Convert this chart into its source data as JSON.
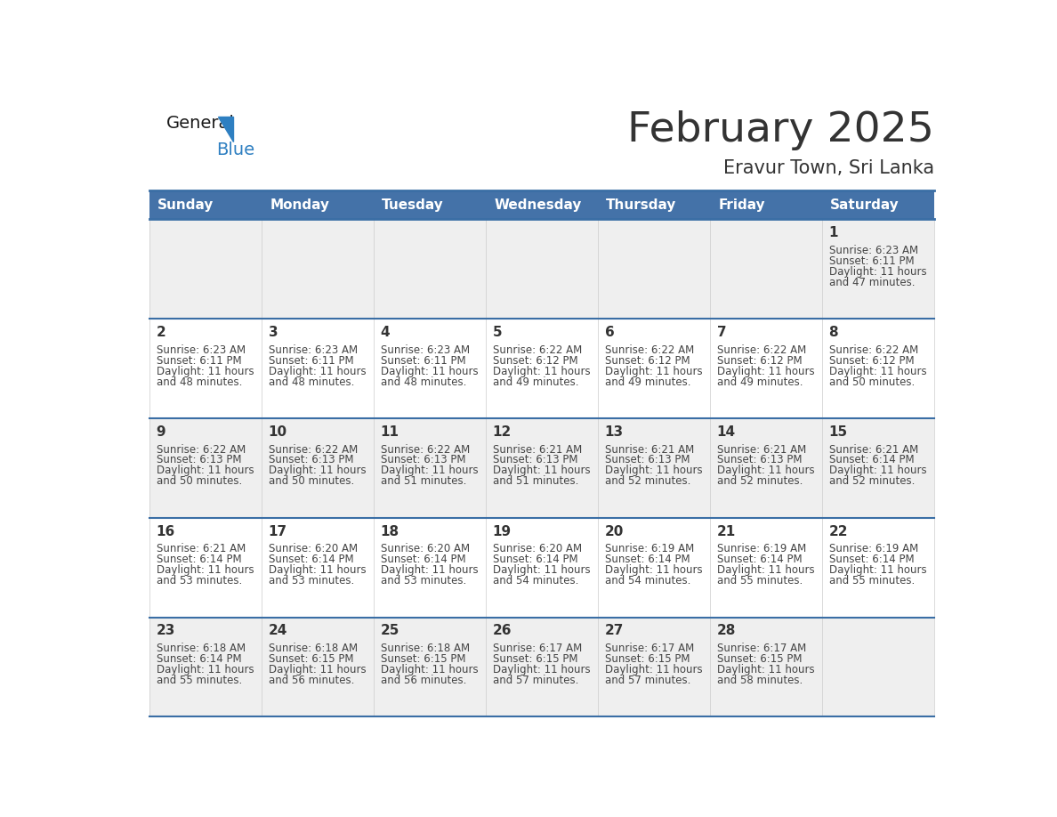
{
  "title": "February 2025",
  "subtitle": "Eravur Town, Sri Lanka",
  "header_bg_color": "#4472a8",
  "header_text_color": "#ffffff",
  "day_names": [
    "Sunday",
    "Monday",
    "Tuesday",
    "Wednesday",
    "Thursday",
    "Friday",
    "Saturday"
  ],
  "row_bg_even": "#efefef",
  "row_bg_odd": "#ffffff",
  "cell_border_color": "#cccccc",
  "date_text_color": "#333333",
  "info_text_color": "#444444",
  "logo_general_color": "#1a1a1a",
  "logo_blue_color": "#2e7fc1",
  "separator_color": "#3a6ea5",
  "days_data": [
    {
      "day": 1,
      "col": 6,
      "row": 0,
      "sunrise": "6:23 AM",
      "sunset": "6:11 PM",
      "daylight": "11 hours and 47 minutes."
    },
    {
      "day": 2,
      "col": 0,
      "row": 1,
      "sunrise": "6:23 AM",
      "sunset": "6:11 PM",
      "daylight": "11 hours and 48 minutes."
    },
    {
      "day": 3,
      "col": 1,
      "row": 1,
      "sunrise": "6:23 AM",
      "sunset": "6:11 PM",
      "daylight": "11 hours and 48 minutes."
    },
    {
      "day": 4,
      "col": 2,
      "row": 1,
      "sunrise": "6:23 AM",
      "sunset": "6:11 PM",
      "daylight": "11 hours and 48 minutes."
    },
    {
      "day": 5,
      "col": 3,
      "row": 1,
      "sunrise": "6:22 AM",
      "sunset": "6:12 PM",
      "daylight": "11 hours and 49 minutes."
    },
    {
      "day": 6,
      "col": 4,
      "row": 1,
      "sunrise": "6:22 AM",
      "sunset": "6:12 PM",
      "daylight": "11 hours and 49 minutes."
    },
    {
      "day": 7,
      "col": 5,
      "row": 1,
      "sunrise": "6:22 AM",
      "sunset": "6:12 PM",
      "daylight": "11 hours and 49 minutes."
    },
    {
      "day": 8,
      "col": 6,
      "row": 1,
      "sunrise": "6:22 AM",
      "sunset": "6:12 PM",
      "daylight": "11 hours and 50 minutes."
    },
    {
      "day": 9,
      "col": 0,
      "row": 2,
      "sunrise": "6:22 AM",
      "sunset": "6:13 PM",
      "daylight": "11 hours and 50 minutes."
    },
    {
      "day": 10,
      "col": 1,
      "row": 2,
      "sunrise": "6:22 AM",
      "sunset": "6:13 PM",
      "daylight": "11 hours and 50 minutes."
    },
    {
      "day": 11,
      "col": 2,
      "row": 2,
      "sunrise": "6:22 AM",
      "sunset": "6:13 PM",
      "daylight": "11 hours and 51 minutes."
    },
    {
      "day": 12,
      "col": 3,
      "row": 2,
      "sunrise": "6:21 AM",
      "sunset": "6:13 PM",
      "daylight": "11 hours and 51 minutes."
    },
    {
      "day": 13,
      "col": 4,
      "row": 2,
      "sunrise": "6:21 AM",
      "sunset": "6:13 PM",
      "daylight": "11 hours and 52 minutes."
    },
    {
      "day": 14,
      "col": 5,
      "row": 2,
      "sunrise": "6:21 AM",
      "sunset": "6:13 PM",
      "daylight": "11 hours and 52 minutes."
    },
    {
      "day": 15,
      "col": 6,
      "row": 2,
      "sunrise": "6:21 AM",
      "sunset": "6:14 PM",
      "daylight": "11 hours and 52 minutes."
    },
    {
      "day": 16,
      "col": 0,
      "row": 3,
      "sunrise": "6:21 AM",
      "sunset": "6:14 PM",
      "daylight": "11 hours and 53 minutes."
    },
    {
      "day": 17,
      "col": 1,
      "row": 3,
      "sunrise": "6:20 AM",
      "sunset": "6:14 PM",
      "daylight": "11 hours and 53 minutes."
    },
    {
      "day": 18,
      "col": 2,
      "row": 3,
      "sunrise": "6:20 AM",
      "sunset": "6:14 PM",
      "daylight": "11 hours and 53 minutes."
    },
    {
      "day": 19,
      "col": 3,
      "row": 3,
      "sunrise": "6:20 AM",
      "sunset": "6:14 PM",
      "daylight": "11 hours and 54 minutes."
    },
    {
      "day": 20,
      "col": 4,
      "row": 3,
      "sunrise": "6:19 AM",
      "sunset": "6:14 PM",
      "daylight": "11 hours and 54 minutes."
    },
    {
      "day": 21,
      "col": 5,
      "row": 3,
      "sunrise": "6:19 AM",
      "sunset": "6:14 PM",
      "daylight": "11 hours and 55 minutes."
    },
    {
      "day": 22,
      "col": 6,
      "row": 3,
      "sunrise": "6:19 AM",
      "sunset": "6:14 PM",
      "daylight": "11 hours and 55 minutes."
    },
    {
      "day": 23,
      "col": 0,
      "row": 4,
      "sunrise": "6:18 AM",
      "sunset": "6:14 PM",
      "daylight": "11 hours and 55 minutes."
    },
    {
      "day": 24,
      "col": 1,
      "row": 4,
      "sunrise": "6:18 AM",
      "sunset": "6:15 PM",
      "daylight": "11 hours and 56 minutes."
    },
    {
      "day": 25,
      "col": 2,
      "row": 4,
      "sunrise": "6:18 AM",
      "sunset": "6:15 PM",
      "daylight": "11 hours and 56 minutes."
    },
    {
      "day": 26,
      "col": 3,
      "row": 4,
      "sunrise": "6:17 AM",
      "sunset": "6:15 PM",
      "daylight": "11 hours and 57 minutes."
    },
    {
      "day": 27,
      "col": 4,
      "row": 4,
      "sunrise": "6:17 AM",
      "sunset": "6:15 PM",
      "daylight": "11 hours and 57 minutes."
    },
    {
      "day": 28,
      "col": 5,
      "row": 4,
      "sunrise": "6:17 AM",
      "sunset": "6:15 PM",
      "daylight": "11 hours and 58 minutes."
    }
  ]
}
